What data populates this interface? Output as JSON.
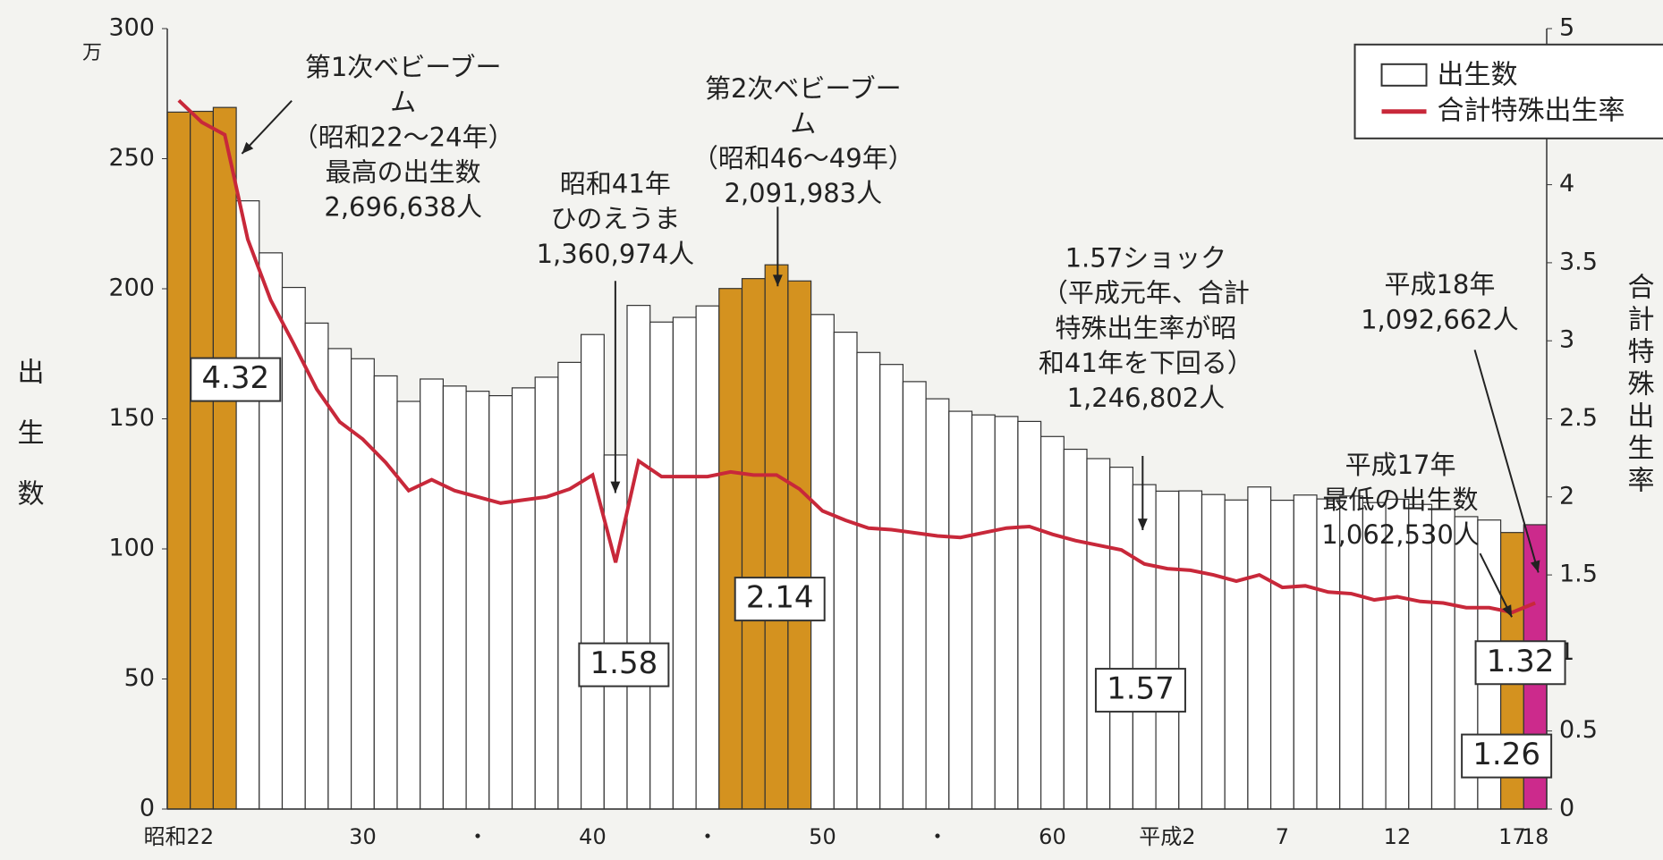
{
  "chart_data": {
    "type": "bar-line",
    "y_unit": "万",
    "y_label": "出生数",
    "y2_label": "合計特殊出生率",
    "categories": [
      "昭和22",
      null,
      null,
      null,
      null,
      null,
      null,
      null,
      "30",
      null,
      null,
      null,
      null,
      "・",
      null,
      null,
      null,
      null,
      "40",
      null,
      null,
      null,
      null,
      "・",
      null,
      null,
      null,
      null,
      "50",
      null,
      null,
      null,
      null,
      "・",
      null,
      null,
      null,
      null,
      "60",
      null,
      null,
      null,
      null,
      "平成2",
      null,
      null,
      null,
      null,
      "7",
      null,
      null,
      null,
      null,
      "12",
      null,
      null,
      null,
      null,
      "17",
      "18"
    ],
    "series": [
      {
        "name": "出生数",
        "color": "#ffffff",
        "colors": [
          "#d4921f",
          "#d4921f",
          "#d4921f",
          "#fff",
          "#fff",
          "#fff",
          "#fff",
          "#fff",
          "#fff",
          "#fff",
          "#fff",
          "#fff",
          "#fff",
          "#fff",
          "#fff",
          "#fff",
          "#fff",
          "#fff",
          "#fff",
          "#fff",
          "#fff",
          "#fff",
          "#fff",
          "#fff",
          "#d4921f",
          "#d4921f",
          "#d4921f",
          "#d4921f",
          "#fff",
          "#fff",
          "#fff",
          "#fff",
          "#fff",
          "#fff",
          "#fff",
          "#fff",
          "#fff",
          "#fff",
          "#fff",
          "#fff",
          "#fff",
          "#fff",
          "#fff",
          "#fff",
          "#fff",
          "#fff",
          "#fff",
          "#fff",
          "#fff",
          "#fff",
          "#fff",
          "#fff",
          "#fff",
          "#fff",
          "#fff",
          "#fff",
          "#fff",
          "#fff",
          "#d4921f",
          "#cc2a8c"
        ],
        "values": [
          267.9,
          268.2,
          269.7,
          233.8,
          213.8,
          200.5,
          186.8,
          177.0,
          173.1,
          166.5,
          156.7,
          165.3,
          162.6,
          160.6,
          158.9,
          161.9,
          166.0,
          171.7,
          182.4,
          136.1,
          193.6,
          187.2,
          189.0,
          193.4,
          200.1,
          203.9,
          209.2,
          203.0,
          190.1,
          183.3,
          175.5,
          170.9,
          164.3,
          157.7,
          152.9,
          151.5,
          150.9,
          149.0,
          143.2,
          138.3,
          134.7,
          131.4,
          124.7,
          122.2,
          122.3,
          120.9,
          118.8,
          123.8,
          118.7,
          120.7,
          119.2,
          120.3,
          117.8,
          119.1,
          117.1,
          115.4,
          112.4,
          111.1,
          106.3,
          109.3
        ]
      },
      {
        "name": "合計特殊出生率",
        "color": "#c8283a",
        "axis": "y2",
        "values": [
          4.54,
          4.4,
          4.32,
          3.65,
          3.26,
          2.98,
          2.69,
          2.48,
          2.37,
          2.22,
          2.04,
          2.11,
          2.04,
          2.0,
          1.96,
          1.98,
          2.0,
          2.05,
          2.14,
          1.58,
          2.23,
          2.13,
          2.13,
          2.13,
          2.16,
          2.14,
          2.14,
          2.05,
          1.91,
          1.85,
          1.8,
          1.79,
          1.77,
          1.75,
          1.74,
          1.77,
          1.8,
          1.81,
          1.76,
          1.72,
          1.69,
          1.66,
          1.57,
          1.54,
          1.53,
          1.5,
          1.46,
          1.5,
          1.42,
          1.43,
          1.39,
          1.38,
          1.34,
          1.36,
          1.33,
          1.32,
          1.29,
          1.29,
          1.26,
          1.32
        ]
      }
    ],
    "ylim": [
      0,
      300
    ],
    "yticks": [
      0,
      50,
      100,
      150,
      200,
      250,
      300
    ],
    "y2lim": [
      0,
      5
    ],
    "y2ticks": [
      0,
      0.5,
      1,
      1.5,
      2,
      2.5,
      3,
      3.5,
      4,
      4.5,
      5
    ],
    "legend": "upper right",
    "annotations": [
      [
        "第1次ベビーブー",
        "ム",
        "（昭和22～24年）",
        "最高の出生数",
        "2,696,638人"
      ],
      [
        "昭和41年",
        "ひのえうま",
        "1,360,974人"
      ],
      [
        "第2次ベビーブー",
        "ム",
        "（昭和46～49年）",
        "2,091,983人"
      ],
      [
        "1.57ショック",
        "（平成元年、合計",
        "特殊出生率が昭",
        "和41年を下回る）",
        "1,246,802人"
      ],
      [
        "平成18年",
        "1,092,662人"
      ],
      [
        "平成17年",
        "最低の出生数",
        "1,062,530人"
      ]
    ],
    "boxes": [
      "4.32",
      "1.58",
      "2.14",
      "1.57",
      "1.32",
      "1.26"
    ]
  }
}
